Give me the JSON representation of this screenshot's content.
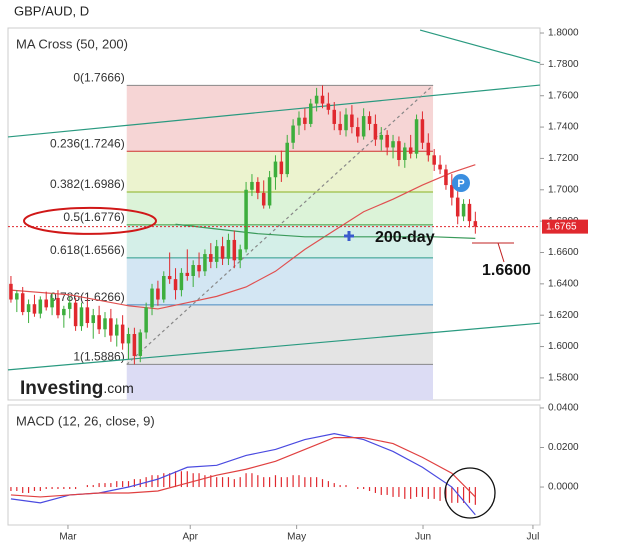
{
  "chart_data": [
    {
      "type": "candlestick",
      "title": "GBP/AUD, D",
      "indicator": "MA Cross (50, 200)",
      "xlim": [
        -0.5,
        90
      ],
      "ylim": [
        1.5659,
        1.8032
      ],
      "xticks": [
        {
          "value": 9.7,
          "label": "Mar"
        },
        {
          "value": 30.5,
          "label": "Apr"
        },
        {
          "value": 48.6,
          "label": "May"
        },
        {
          "value": 70.1,
          "label": "Jun"
        },
        {
          "value": 88.8,
          "label": "Jul"
        }
      ],
      "yticks": [
        {
          "value": 1.8,
          "label": "1.8000"
        },
        {
          "value": 1.78,
          "label": "1.7800"
        },
        {
          "value": 1.76,
          "label": "1.7600"
        },
        {
          "value": 1.74,
          "label": "1.7400"
        },
        {
          "value": 1.72,
          "label": "1.7200"
        },
        {
          "value": 1.7,
          "label": "1.7000"
        },
        {
          "value": 1.68,
          "label": "1.6800"
        },
        {
          "value": 1.66,
          "label": "1.6600"
        },
        {
          "value": 1.64,
          "label": "1.6400"
        },
        {
          "value": 1.62,
          "label": "1.6200"
        },
        {
          "value": 1.6,
          "label": "1.6000"
        },
        {
          "value": 1.58,
          "label": "1.5800"
        }
      ],
      "last_price": {
        "value": 1.6765,
        "label": "1.6765"
      },
      "up_color": "#3dae3d",
      "down_color": "#e0282e",
      "open": [
        1.64,
        1.63,
        1.634,
        1.622,
        1.627,
        1.621,
        1.63,
        1.625,
        1.631,
        1.62,
        1.624,
        1.628,
        1.613,
        1.625,
        1.615,
        1.62,
        1.611,
        1.618,
        1.607,
        1.614,
        1.602,
        1.608,
        1.594,
        1.609,
        1.625,
        1.637,
        1.63,
        1.645,
        1.643,
        1.636,
        1.647,
        1.645,
        1.652,
        1.648,
        1.659,
        1.654,
        1.664,
        1.656,
        1.668,
        1.655,
        1.662,
        1.7,
        1.705,
        1.698,
        1.69,
        1.708,
        1.718,
        1.71,
        1.73,
        1.741,
        1.746,
        1.742,
        1.755,
        1.76,
        1.755,
        1.751,
        1.742,
        1.738,
        1.748,
        1.74,
        1.734,
        1.747,
        1.742,
        1.732,
        1.735,
        1.727,
        1.731,
        1.719,
        1.727,
        1.723,
        1.745,
        1.73,
        1.722,
        1.716,
        1.713,
        1.703,
        1.695,
        1.683,
        1.691,
        1.68
      ],
      "high": [
        1.645,
        1.636,
        1.638,
        1.63,
        1.633,
        1.632,
        1.635,
        1.634,
        1.636,
        1.626,
        1.632,
        1.631,
        1.628,
        1.63,
        1.624,
        1.626,
        1.622,
        1.624,
        1.618,
        1.62,
        1.612,
        1.612,
        1.611,
        1.628,
        1.64,
        1.642,
        1.648,
        1.66,
        1.65,
        1.65,
        1.662,
        1.655,
        1.66,
        1.662,
        1.666,
        1.668,
        1.67,
        1.672,
        1.674,
        1.665,
        1.705,
        1.71,
        1.708,
        1.706,
        1.712,
        1.722,
        1.725,
        1.735,
        1.745,
        1.75,
        1.752,
        1.758,
        1.765,
        1.7666,
        1.762,
        1.756,
        1.75,
        1.752,
        1.754,
        1.746,
        1.752,
        1.75,
        1.748,
        1.74,
        1.738,
        1.735,
        1.734,
        1.73,
        1.735,
        1.748,
        1.75,
        1.736,
        1.726,
        1.722,
        1.716,
        1.71,
        1.7,
        1.694,
        1.694,
        1.686
      ],
      "low": [
        1.628,
        1.622,
        1.62,
        1.615,
        1.619,
        1.618,
        1.623,
        1.62,
        1.618,
        1.612,
        1.618,
        1.61,
        1.61,
        1.612,
        1.605,
        1.608,
        1.606,
        1.603,
        1.6,
        1.598,
        1.592,
        1.5886,
        1.59,
        1.605,
        1.62,
        1.626,
        1.628,
        1.64,
        1.63,
        1.632,
        1.642,
        1.638,
        1.644,
        1.645,
        1.65,
        1.65,
        1.652,
        1.652,
        1.65,
        1.65,
        1.66,
        1.696,
        1.694,
        1.688,
        1.688,
        1.7,
        1.705,
        1.708,
        1.726,
        1.735,
        1.738,
        1.74,
        1.75,
        1.752,
        1.748,
        1.738,
        1.735,
        1.734,
        1.736,
        1.73,
        1.732,
        1.738,
        1.728,
        1.725,
        1.722,
        1.72,
        1.715,
        1.714,
        1.72,
        1.72,
        1.726,
        1.718,
        1.712,
        1.71,
        1.7,
        1.69,
        1.678,
        1.68,
        1.676,
        1.672
      ],
      "close": [
        1.63,
        1.634,
        1.622,
        1.627,
        1.621,
        1.63,
        1.625,
        1.631,
        1.62,
        1.624,
        1.628,
        1.613,
        1.625,
        1.615,
        1.62,
        1.611,
        1.618,
        1.607,
        1.614,
        1.602,
        1.608,
        1.594,
        1.609,
        1.625,
        1.637,
        1.63,
        1.645,
        1.643,
        1.636,
        1.647,
        1.645,
        1.652,
        1.648,
        1.659,
        1.654,
        1.664,
        1.656,
        1.668,
        1.655,
        1.662,
        1.7,
        1.705,
        1.698,
        1.69,
        1.708,
        1.718,
        1.71,
        1.73,
        1.741,
        1.746,
        1.742,
        1.755,
        1.76,
        1.755,
        1.751,
        1.742,
        1.738,
        1.748,
        1.74,
        1.734,
        1.747,
        1.742,
        1.732,
        1.735,
        1.727,
        1.731,
        1.719,
        1.727,
        1.723,
        1.745,
        1.73,
        1.722,
        1.716,
        1.713,
        1.703,
        1.695,
        1.683,
        1.691,
        1.68,
        1.6765
      ],
      "series": [
        {
          "color": "#e05050",
          "x": [
            0,
            10,
            20,
            25,
            30,
            35,
            40,
            45,
            50,
            55,
            60,
            65,
            70,
            75,
            79
          ],
          "values": [
            1.636,
            1.633,
            1.626,
            1.624,
            1.628,
            1.632,
            1.638,
            1.648,
            1.662,
            1.674,
            1.686,
            1.694,
            1.703,
            1.711,
            1.716
          ]
        },
        {
          "color": "#3a9a5a",
          "x": [
            28,
            35,
            42,
            50,
            57,
            64,
            72,
            79
          ],
          "values": [
            1.678,
            1.675,
            1.672,
            1.67,
            1.67,
            1.67,
            1.67,
            1.669
          ]
        }
      ],
      "lines": [
        {
          "color": "#2a9a80",
          "x": [
            -0.5,
            90
          ],
          "values": [
            1.7337,
            1.7668
          ]
        },
        {
          "color": "#2a9a80",
          "x": [
            -0.5,
            90
          ],
          "values": [
            1.5851,
            1.6149
          ]
        },
        {
          "color": "#2a9a80",
          "x": [
            69.6,
            90
          ],
          "values": [
            1.8019,
            1.7809
          ]
        },
        {
          "color": "#888888",
          "dash": true,
          "x": [
            19.7,
            71.8
          ],
          "values": [
            1.5886,
            1.7666
          ]
        }
      ],
      "fib_range_x": [
        19.7,
        71.8
      ],
      "fib_levels": [
        {
          "value": 1.7666,
          "label": "0(1.7666)",
          "color": "#888888",
          "fill": "#f6d5d5"
        },
        {
          "value": 1.7246,
          "label": "0.236(1.7246)",
          "color": "#d03030",
          "fill": "#ecf3cf"
        },
        {
          "value": 1.6986,
          "label": "0.382(1.6986)",
          "color": "#8ab020",
          "fill": "#dcf3d8"
        },
        {
          "value": 1.6776,
          "label": "0.5(1.6776)",
          "color": "#3a9a3a",
          "fill": "#d4efe8"
        },
        {
          "value": 1.6566,
          "label": "0.618(1.6566)",
          "color": "#2a9a8a",
          "fill": "#d3e6f3"
        },
        {
          "value": 1.6266,
          "label": "0.786(1.6266)",
          "color": "#4a8ac0",
          "fill": "#e4e4e4"
        },
        {
          "value": 1.5886,
          "label": "1(1.5886)",
          "color": "#888888",
          "fill": "#dcdcf4"
        }
      ],
      "annotations": [
        "200-day",
        "1.6600",
        "P"
      ],
      "logo": [
        "Investing",
        ".com"
      ]
    },
    {
      "type": "macd",
      "title": "MACD (12, 26, close, 9)",
      "ylim": [
        -0.0192,
        0.0415
      ],
      "yticks": [
        {
          "value": 0.04,
          "label": "0.0400"
        },
        {
          "value": 0.02,
          "label": "0.0200"
        },
        {
          "value": 0,
          "label": "0.0000"
        }
      ],
      "hist_color": "#e0282e",
      "histogram": [
        -0.002,
        -0.002,
        -0.003,
        -0.003,
        -0.002,
        -0.002,
        -0.001,
        -0.001,
        -0.001,
        -0.001,
        -0.001,
        -0.001,
        0,
        0.001,
        0.001,
        0.002,
        0.002,
        0.002,
        0.003,
        0.003,
        0.003,
        0.004,
        0.004,
        0.005,
        0.006,
        0.006,
        0.007,
        0.007,
        0.008,
        0.008,
        0.008,
        0.007,
        0.007,
        0.006,
        0.006,
        0.005,
        0.005,
        0.005,
        0.004,
        0.005,
        0.007,
        0.007,
        0.006,
        0.005,
        0.005,
        0.006,
        0.005,
        0.005,
        0.006,
        0.006,
        0.005,
        0.005,
        0.005,
        0.004,
        0.003,
        0.002,
        0.001,
        0.001,
        0,
        -0.001,
        -0.001,
        -0.002,
        -0.003,
        -0.004,
        -0.004,
        -0.005,
        -0.005,
        -0.006,
        -0.006,
        -0.005,
        -0.005,
        -0.006,
        -0.006,
        -0.007,
        -0.007,
        -0.008,
        -0.008,
        -0.008,
        -0.008,
        -0.009
      ],
      "series": [
        {
          "color": "#4a4ae0",
          "x": [
            0,
            5,
            10,
            15,
            20,
            25,
            30,
            35,
            40,
            45,
            50,
            55,
            60,
            65,
            70,
            75,
            79
          ],
          "values": [
            -0.006,
            -0.008,
            -0.004,
            -0.003,
            0,
            0.004,
            0.01,
            0.011,
            0.016,
            0.019,
            0.024,
            0.027,
            0.024,
            0.018,
            0.01,
            0,
            -0.014
          ]
        },
        {
          "color": "#e04040",
          "x": [
            0,
            5,
            10,
            15,
            20,
            25,
            30,
            35,
            40,
            45,
            50,
            55,
            60,
            65,
            70,
            75,
            79
          ],
          "values": [
            -0.004,
            -0.005,
            -0.004,
            -0.003,
            -0.003,
            -0.002,
            0.002,
            0.006,
            0.009,
            0.013,
            0.019,
            0.025,
            0.025,
            0.022,
            0.015,
            0.007,
            -0.005
          ]
        }
      ]
    }
  ]
}
